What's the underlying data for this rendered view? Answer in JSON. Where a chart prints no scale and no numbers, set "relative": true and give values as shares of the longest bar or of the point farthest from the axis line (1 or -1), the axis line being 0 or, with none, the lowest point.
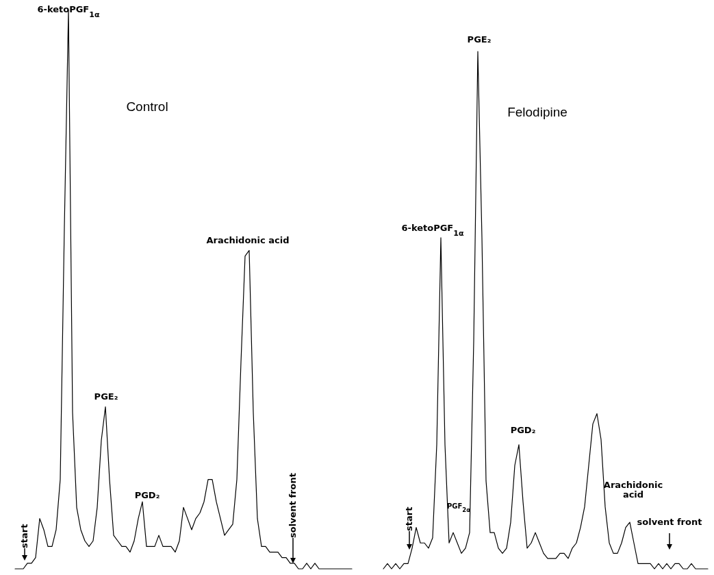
{
  "chart_data": [
    {
      "type": "line",
      "title": "Control",
      "relative": true,
      "categories": [
        null,
        null,
        null,
        null,
        null,
        null,
        null,
        null,
        null,
        null,
        null,
        null,
        null,
        null,
        null,
        null,
        null,
        null,
        null,
        null,
        null,
        null,
        null,
        null,
        null,
        null,
        null,
        null,
        null,
        null,
        null,
        null,
        null,
        null,
        null,
        null,
        null,
        null,
        null,
        null,
        null,
        null,
        null,
        null,
        null,
        null,
        null,
        null,
        null,
        null,
        null,
        null,
        null,
        null,
        null,
        null,
        null,
        null,
        null,
        null,
        null,
        null,
        null,
        null,
        null,
        null,
        null,
        null,
        null,
        null,
        null,
        null,
        null,
        null,
        null,
        null,
        null,
        null,
        null,
        null,
        null,
        null,
        null
      ],
      "series": [
        {
          "color": "#000000",
          "values": [
            0,
            0,
            0,
            0.01,
            0.01,
            0.02,
            0.09,
            0.07,
            0.04,
            0.04,
            0.07,
            0.16,
            0.61,
            1,
            0.28,
            0.11,
            0.07,
            0.05,
            0.04,
            0.05,
            0.11,
            0.23,
            0.29,
            0.16,
            0.06,
            0.05,
            0.04,
            0.04,
            0.03,
            0.05,
            0.09,
            0.12,
            0.04,
            0.04,
            0.04,
            0.06,
            0.04,
            0.04,
            0.04,
            0.03,
            0.05,
            0.11,
            0.09,
            0.07,
            0.09,
            0.1,
            0.12,
            0.16,
            0.16,
            0.12,
            0.09,
            0.06,
            0.07,
            0.08,
            0.16,
            0.37,
            0.56,
            0.57,
            0.28,
            0.09,
            0.04,
            0.04,
            0.03,
            0.03,
            0.03,
            0.02,
            0.02,
            0.01,
            0.01,
            0,
            0,
            0.01,
            0,
            0.01,
            0,
            0,
            0,
            0,
            0,
            0,
            0,
            0,
            0
          ]
        }
      ],
      "annotations": [
        "6-ketoPGF$_{1α}$",
        "PGE₂",
        "PGD₂",
        "Arachidonic acid",
        "start",
        "solvent front"
      ]
    },
    {
      "type": "line",
      "title": "Felodipine",
      "relative": true,
      "categories": [
        null,
        null,
        null,
        null,
        null,
        null,
        null,
        null,
        null,
        null,
        null,
        null,
        null,
        null,
        null,
        null,
        null,
        null,
        null,
        null,
        null,
        null,
        null,
        null,
        null,
        null,
        null,
        null,
        null,
        null,
        null,
        null,
        null,
        null,
        null,
        null,
        null,
        null,
        null,
        null,
        null,
        null,
        null,
        null,
        null,
        null,
        null,
        null,
        null,
        null,
        null,
        null,
        null,
        null,
        null,
        null,
        null,
        null,
        null,
        null,
        null,
        null,
        null,
        null,
        null,
        null,
        null,
        null,
        null,
        null,
        null,
        null,
        null,
        null,
        null,
        null,
        null,
        null,
        null,
        null
      ],
      "series": [
        {
          "color": "#000000",
          "values": [
            0,
            0.01,
            0,
            0.01,
            0,
            0.01,
            0.01,
            0.04,
            0.08,
            0.05,
            0.05,
            0.04,
            0.06,
            0.24,
            0.64,
            0.24,
            0.05,
            0.07,
            0.05,
            0.03,
            0.04,
            0.07,
            0.44,
            1,
            0.64,
            0.17,
            0.07,
            0.07,
            0.04,
            0.03,
            0.04,
            0.09,
            0.2,
            0.24,
            0.13,
            0.04,
            0.05,
            0.07,
            0.05,
            0.03,
            0.02,
            0.02,
            0.02,
            0.03,
            0.03,
            0.02,
            0.04,
            0.05,
            0.08,
            0.12,
            0.2,
            0.28,
            0.3,
            0.25,
            0.12,
            0.05,
            0.03,
            0.03,
            0.05,
            0.08,
            0.09,
            0.05,
            0.01,
            0.01,
            0.01,
            0.01,
            0,
            0.01,
            0,
            0.01,
            0,
            0.01,
            0.01,
            0,
            0,
            0.01,
            0,
            0,
            0,
            0
          ]
        }
      ],
      "annotations": [
        "6-ketoPGF$_{1α}$",
        "PGE₂",
        "PGF$_{2α}$",
        "PGD₂",
        "Arachidonic acid",
        "start",
        "solvent front"
      ]
    }
  ]
}
